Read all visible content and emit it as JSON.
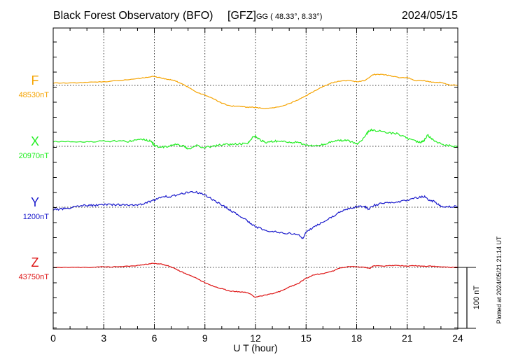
{
  "header": {
    "title": "Black Forest Observatory (BFO)",
    "institute": "[GFZ]",
    "coords": "GG ( 48.33°,   8.33°)",
    "date": "2024/05/15"
  },
  "footer_note": "Plotted at 2024/05/21 21:14 UT",
  "scale_bar": {
    "label": "100 nT",
    "value_nt": 100
  },
  "chart_data": {
    "type": "line",
    "title": "Black Forest Observatory (BFO)",
    "xlabel": "U T (hour)",
    "ylabel": "",
    "xlim": [
      0,
      24
    ],
    "x_ticks": [
      0,
      3,
      6,
      9,
      12,
      15,
      18,
      21,
      24
    ],
    "x_tick_labels": [
      "0",
      "3",
      "6",
      "9",
      "12",
      "15",
      "18",
      "21",
      "24"
    ],
    "grid": true,
    "series": [
      {
        "name": "F",
        "baseline_label": "48530nT",
        "baseline": 48530,
        "color": "#f5a300",
        "x": [
          0,
          1,
          2,
          3,
          4,
          5,
          5.5,
          6,
          6.4,
          6.8,
          7.2,
          7.6,
          8,
          8.5,
          9,
          9.5,
          10,
          10.5,
          11,
          11.5,
          12,
          12.5,
          13,
          13.5,
          14,
          14.5,
          15,
          15.5,
          16,
          16.5,
          17,
          17.5,
          18,
          18.5,
          19,
          19.5,
          20,
          20.5,
          21,
          21.5,
          22,
          22.5,
          23,
          23.5,
          24
        ],
        "y": [
          48534,
          48534,
          48535,
          48536,
          48538,
          48541,
          48543,
          48545,
          48542,
          48540,
          48538,
          48533,
          48527,
          48519,
          48514,
          48508,
          48501,
          48496,
          48496,
          48494,
          48494,
          48492,
          48493,
          48495,
          48500,
          48506,
          48513,
          48521,
          48528,
          48534,
          48537,
          48538,
          48536,
          48538,
          48548,
          48548,
          48546,
          48543,
          48543,
          48538,
          48538,
          48535,
          48535,
          48531,
          48530
        ]
      },
      {
        "name": "X",
        "baseline_label": "20970nT",
        "baseline": 20970,
        "color": "#22ee22",
        "x": [
          0,
          1,
          2,
          3,
          4,
          4.5,
          5,
          5.5,
          5.8,
          6,
          6.3,
          6.8,
          7.3,
          7.8,
          8,
          8.5,
          9,
          9.5,
          10,
          10.5,
          11,
          11.5,
          11.8,
          12,
          12.3,
          12.6,
          13,
          13.5,
          14,
          14.5,
          15,
          15.5,
          16,
          16.5,
          17,
          17.5,
          18,
          18.3,
          18.6,
          18.8,
          19,
          19.5,
          20,
          20.5,
          21,
          21.5,
          21.8,
          22,
          22.2,
          22.5,
          23,
          23.5,
          24
        ],
        "y": [
          20978,
          20978,
          20977,
          20979,
          20978,
          20978,
          20981,
          20981,
          20978,
          20972,
          20968,
          20970,
          20973,
          20970,
          20965,
          20971,
          20968,
          20970,
          20973,
          20973,
          20974,
          20974,
          20984,
          20987,
          20980,
          20976,
          20978,
          20979,
          20976,
          20977,
          20972,
          20970,
          20973,
          20977,
          20980,
          20979,
          20974,
          20980,
          20991,
          20997,
          20997,
          20994,
          20992,
          20990,
          20983,
          20978,
          20976,
          20979,
          20989,
          20981,
          20974,
          20971,
          20969
        ]
      },
      {
        "name": "Y",
        "baseline_label": "1200nT",
        "baseline": 1200,
        "color": "#1a1acc",
        "x": [
          0,
          0.5,
          1,
          1.5,
          2,
          2.5,
          3,
          3.5,
          4,
          4.5,
          5,
          5.5,
          6,
          6.5,
          7,
          7.5,
          8,
          8.5,
          9,
          9.5,
          10,
          10.5,
          11,
          11.5,
          12,
          12.5,
          13,
          13.5,
          14,
          14.5,
          14.8,
          15,
          15.5,
          16,
          16.5,
          17,
          17.5,
          18,
          18.5,
          18.7,
          19,
          19.5,
          20,
          20.5,
          21,
          21.5,
          22,
          22.3,
          22.6,
          23,
          23.5,
          24
        ],
        "y": [
          1196,
          1197,
          1199,
          1202,
          1203,
          1203,
          1204,
          1204,
          1204,
          1204,
          1203,
          1207,
          1212,
          1218,
          1217,
          1222,
          1224,
          1225,
          1220,
          1212,
          1204,
          1195,
          1187,
          1178,
          1168,
          1163,
          1160,
          1158,
          1157,
          1155,
          1149,
          1159,
          1168,
          1176,
          1184,
          1192,
          1198,
          1201,
          1201,
          1197,
          1203,
          1206,
          1208,
          1209,
          1212,
          1215,
          1218,
          1211,
          1210,
          1201,
          1201,
          1201
        ]
      },
      {
        "name": "Z",
        "baseline_label": "43750nT",
        "baseline": 43750,
        "color": "#dd1111",
        "x": [
          0,
          1,
          2,
          3,
          4,
          5,
          5.5,
          6,
          6.5,
          7,
          7.5,
          8,
          8.5,
          9,
          9.5,
          10,
          10.5,
          11,
          11.5,
          12,
          12.5,
          13,
          13.5,
          14,
          14.5,
          15,
          15.5,
          16,
          16.5,
          17,
          17.5,
          18,
          18.5,
          18.8,
          19,
          19.5,
          20,
          20.5,
          21,
          21.5,
          22,
          22.5,
          23,
          23.5,
          24
        ],
        "y": [
          43750,
          43750,
          43750,
          43751,
          43751,
          43753,
          43755,
          43757,
          43755,
          43751,
          43744,
          43738,
          43732,
          43725,
          43719,
          43715,
          43711,
          43710,
          43709,
          43701,
          43704,
          43707,
          43711,
          43718,
          43723,
          43732,
          43738,
          43740,
          43743,
          43749,
          43751,
          43751,
          43750,
          43748,
          43753,
          43752,
          43753,
          43753,
          43752,
          43753,
          43752,
          43752,
          43751,
          43750,
          43750
        ]
      }
    ]
  }
}
